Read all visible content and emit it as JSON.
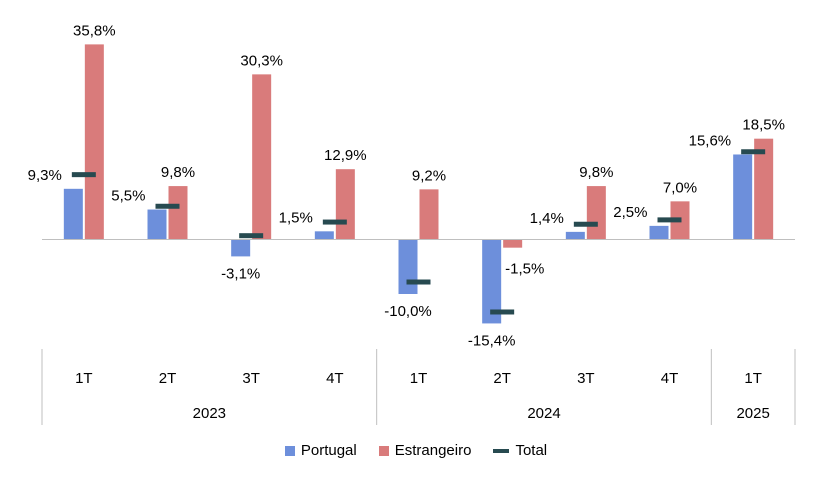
{
  "chart_data": {
    "type": "bar",
    "quarters": [
      "1T",
      "2T",
      "3T",
      "4T",
      "1T",
      "2T",
      "3T",
      "4T",
      "1T"
    ],
    "years": [
      {
        "label": "2023",
        "quarters": 4
      },
      {
        "label": "2024",
        "quarters": 4
      },
      {
        "label": "2025",
        "quarters": 1
      }
    ],
    "series": [
      {
        "name": "Portugal",
        "kind": "bar",
        "color": "#6d8fdb",
        "values": [
          9.3,
          5.5,
          -3.1,
          1.5,
          -10.0,
          -15.4,
          1.4,
          2.5,
          15.6
        ],
        "labels": [
          "9,3%",
          "5,5%",
          "-3,1%",
          "1,5%",
          "-10,0%",
          "-15,4%",
          "1,4%",
          "2,5%",
          "15,6%"
        ]
      },
      {
        "name": "Estrangeiro",
        "kind": "bar",
        "color": "#d97b7b",
        "values": [
          35.8,
          9.8,
          30.3,
          12.9,
          9.2,
          -1.5,
          9.8,
          7.0,
          18.5
        ],
        "labels": [
          "35,8%",
          "9,8%",
          "30,3%",
          "12,9%",
          "9,2%",
          "-1,5%",
          "9,8%",
          "7,0%",
          "18,5%"
        ]
      },
      {
        "name": "Total",
        "kind": "marker",
        "color": "#274a50",
        "values": [
          11.9,
          6.1,
          0.7,
          3.2,
          -7.8,
          -13.3,
          2.8,
          3.6,
          16.1
        ]
      }
    ],
    "title": "",
    "xlabel": "",
    "ylabel": "",
    "ylim": [
      -18,
      37
    ],
    "grid": false,
    "legend_position": "bottom"
  },
  "legend": {
    "portugal": "Portugal",
    "estrangeiro": "Estrangeiro",
    "total": "Total"
  }
}
